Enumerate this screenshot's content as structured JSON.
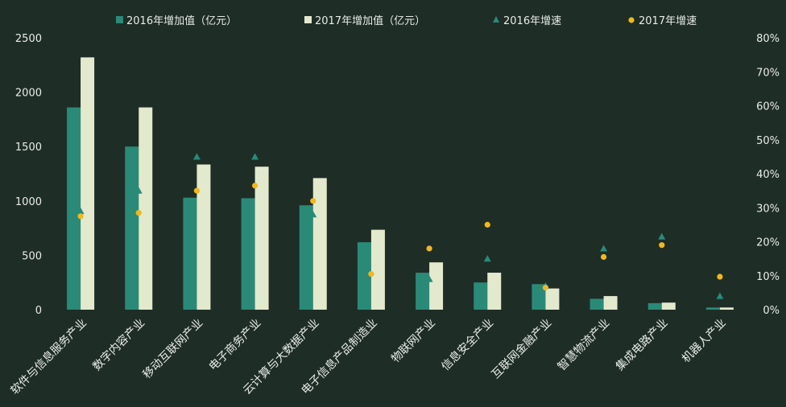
{
  "chart_data": {
    "type": "bar",
    "title": "",
    "xlabel": "",
    "ylabel": "",
    "categories": [
      "软件与信息服务产业",
      "数字内容产业",
      "移动互联网产业",
      "电子商务产业",
      "云计算与大数据产业",
      "电子信息产品制造业",
      "物联网产业",
      "信息安全产业",
      "互联网金融产业",
      "智慧物流产业",
      "集成电路产业",
      "机器人产业"
    ],
    "series": [
      {
        "name": "2016年增加值（亿元）",
        "type": "bar",
        "axis": "left",
        "values": [
          1860,
          1500,
          1030,
          1025,
          960,
          620,
          340,
          250,
          235,
          100,
          60,
          20
        ]
      },
      {
        "name": "2017年增加值（亿元）",
        "type": "bar",
        "axis": "left",
        "values": [
          2320,
          1860,
          1335,
          1315,
          1210,
          735,
          435,
          340,
          195,
          125,
          65,
          20
        ]
      },
      {
        "name": "2016年增速",
        "type": "scatter",
        "marker": "triangle",
        "axis": "right",
        "values": [
          0.29,
          0.35,
          0.45,
          0.45,
          0.28,
          null,
          0.09,
          0.15,
          0.07,
          0.18,
          0.215,
          0.04
        ]
      },
      {
        "name": "2017年增速",
        "type": "scatter",
        "marker": "circle",
        "axis": "right",
        "values": [
          0.275,
          0.285,
          0.35,
          0.365,
          0.32,
          0.105,
          0.18,
          0.25,
          0.065,
          0.155,
          0.19,
          0.097
        ]
      }
    ],
    "ylim": [
      0,
      2500
    ],
    "yticks": [
      0,
      500,
      1000,
      1500,
      2000,
      2500
    ],
    "y2lim": [
      0,
      0.8
    ],
    "y2ticks": [
      "0%",
      "10%",
      "20%",
      "30%",
      "40%",
      "50%",
      "60%",
      "70%",
      "80%"
    ],
    "legend_position": "top",
    "grid": false,
    "colors": {
      "bar2016": "#2a8a78",
      "bar2017": "#e3e9cc",
      "tri2016": "#2a8a78",
      "dot2017": "#f2b81a",
      "background": "#1f2d27",
      "text": "#e8ece6"
    }
  }
}
